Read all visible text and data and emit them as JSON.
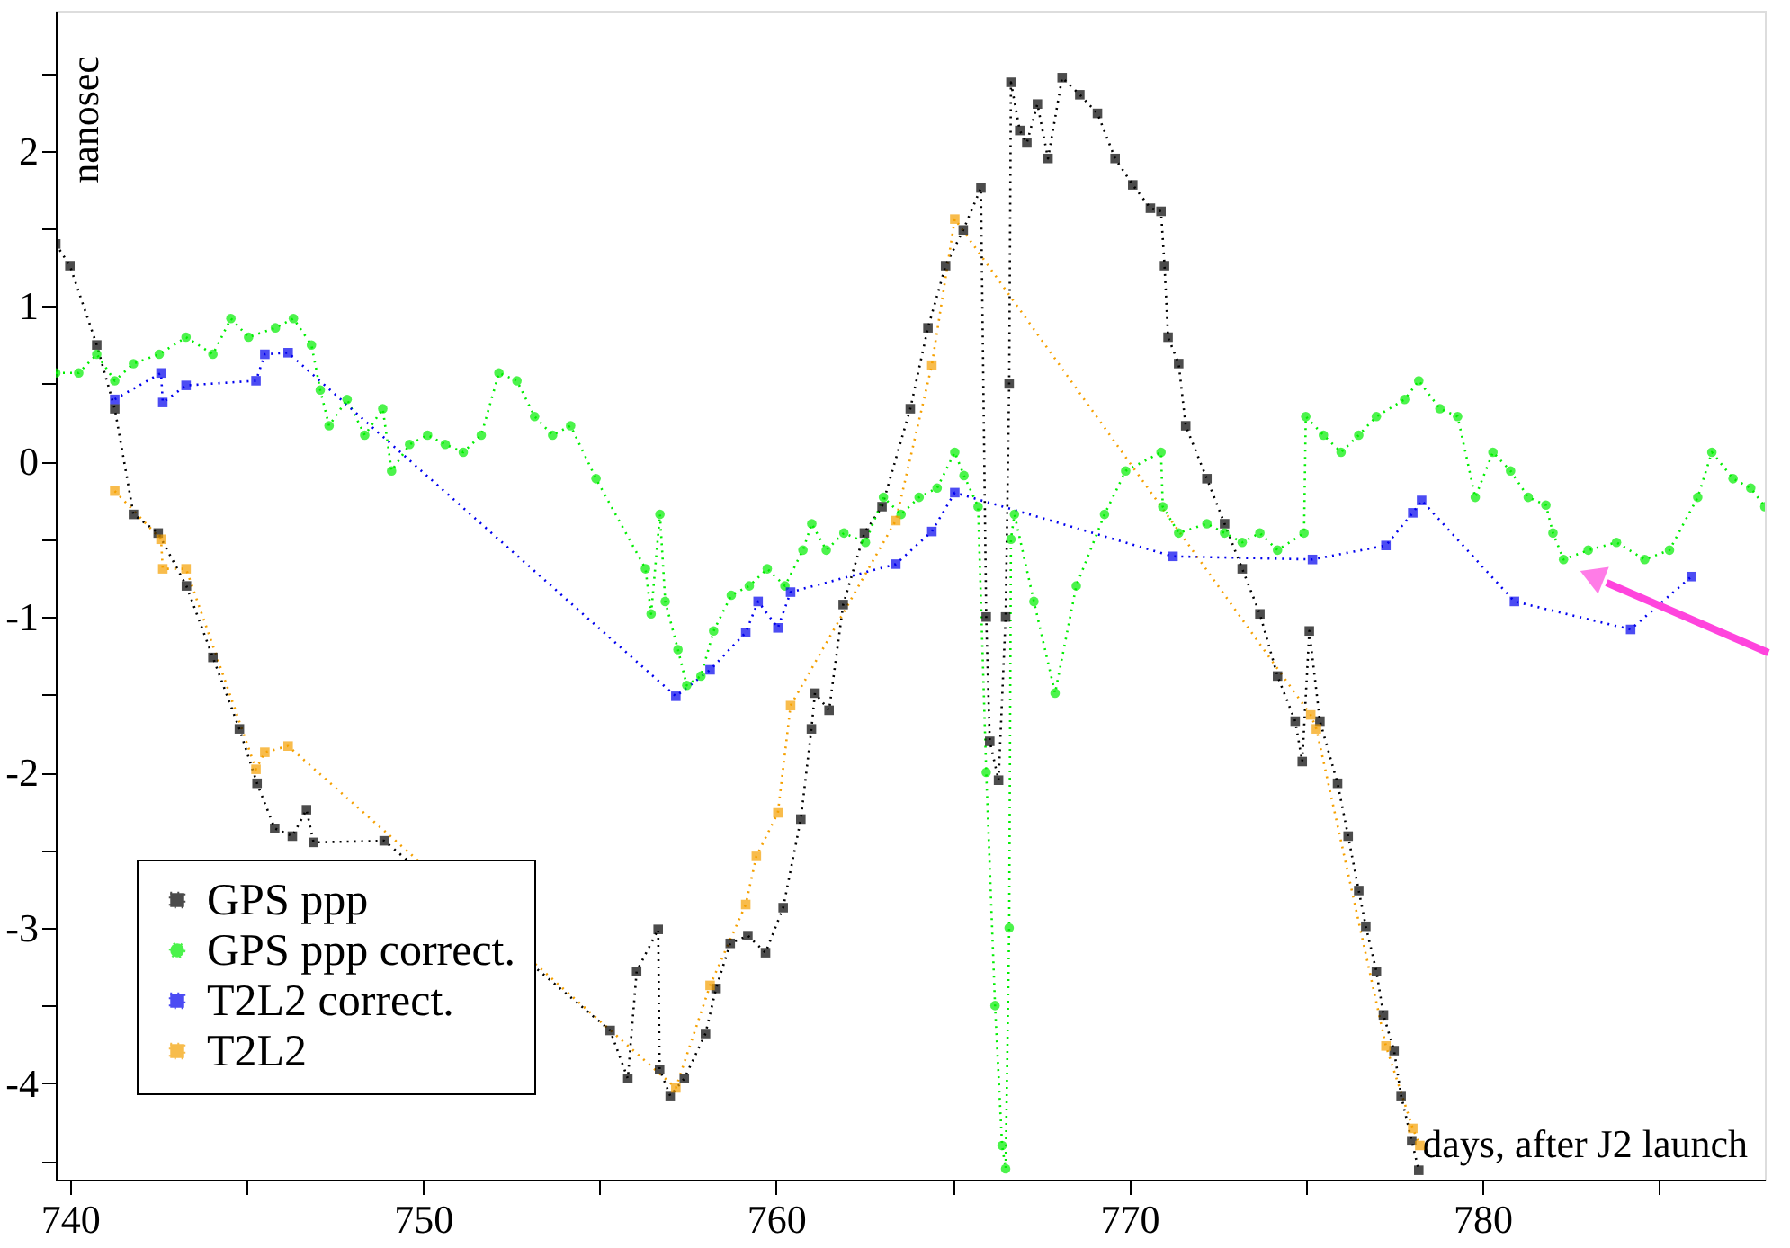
{
  "chart_data": {
    "type": "line",
    "xlabel": "days, after J2 launch",
    "ylabel": "nanosec",
    "xlim": [
      739.6,
      788.0
    ],
    "ylim": [
      -4.62,
      2.9
    ],
    "xticks": [
      740,
      {
        "value": 745,
        "label": null
      },
      750,
      {
        "value": 755,
        "label": null
      },
      760,
      {
        "value": 765,
        "label": null
      },
      770,
      {
        "value": 775,
        "label": null
      },
      780,
      {
        "value": 785,
        "label": null
      }
    ],
    "yticks": [
      -4,
      {
        "value": -4.5,
        "label": null
      },
      {
        "value": -3.5,
        "label": null
      },
      -3,
      {
        "value": -2.5,
        "label": null
      },
      -2,
      {
        "value": -1.5,
        "label": null
      },
      -1,
      {
        "value": -0.5,
        "label": null
      },
      0,
      {
        "value": 0.5,
        "label": null
      },
      1,
      {
        "value": 1.5,
        "label": null
      },
      2,
      {
        "value": 2.5,
        "label": null
      }
    ],
    "grid": false,
    "legend": "bottom left",
    "line_style": "dotted",
    "series": [
      {
        "name": "GPS ppp",
        "color": "#000000",
        "marker": "square",
        "x": [
          739.6,
          740.0,
          740.76,
          741.27,
          741.8,
          742.5,
          743.3,
          744.05,
          744.8,
          745.3,
          745.8,
          746.3,
          746.7,
          746.9,
          748.9,
          755.3,
          755.8,
          756.05,
          756.66,
          756.7,
          757.0,
          757.4,
          758.0,
          758.3,
          758.7,
          759.2,
          759.7,
          760.2,
          760.7,
          761.0,
          761.1,
          761.5,
          761.9,
          762.5,
          763.0,
          763.8,
          764.3,
          764.8,
          765.3,
          765.8,
          765.95,
          766.05,
          766.3,
          766.5,
          766.6,
          766.65,
          766.9,
          767.1,
          767.4,
          767.7,
          768.1,
          768.6,
          769.1,
          769.6,
          770.1,
          770.6,
          770.9,
          771.0,
          771.1,
          771.4,
          771.6,
          772.2,
          772.7,
          773.2,
          773.7,
          774.2,
          774.7,
          774.9,
          775.1,
          775.4,
          775.9,
          776.2,
          776.5,
          776.7,
          777.0,
          777.2,
          777.5,
          777.7,
          778.0,
          778.2
        ],
        "values": [
          1.4,
          1.26,
          0.75,
          0.34,
          -0.34,
          -0.46,
          -0.8,
          -1.26,
          -1.72,
          -2.07,
          -2.36,
          -2.41,
          -2.24,
          -2.45,
          -2.44,
          -3.66,
          -3.97,
          -3.28,
          -3.01,
          -3.91,
          -4.08,
          -3.97,
          -3.68,
          -3.39,
          -3.1,
          -3.05,
          -3.16,
          -2.87,
          -2.3,
          -1.72,
          -1.49,
          -1.6,
          -0.92,
          -0.46,
          -0.29,
          0.34,
          0.86,
          1.26,
          1.49,
          1.76,
          -1.0,
          -1.8,
          -2.05,
          -1.0,
          0.5,
          2.44,
          2.13,
          2.05,
          2.3,
          1.95,
          2.47,
          2.36,
          2.24,
          1.95,
          1.78,
          1.63,
          1.61,
          1.26,
          0.8,
          0.63,
          0.23,
          -0.11,
          -0.4,
          -0.69,
          -0.98,
          -1.38,
          -1.67,
          -1.93,
          -1.09,
          -1.67,
          -2.07,
          -2.41,
          -2.76,
          -2.99,
          -3.28,
          -3.56,
          -3.79,
          -4.08,
          -4.37,
          -4.56
        ]
      },
      {
        "name": "GPS ppp correct.",
        "color": "#00ee00",
        "marker": "circle",
        "x": [
          739.6,
          740.25,
          740.76,
          741.27,
          741.8,
          742.53,
          743.29,
          744.05,
          744.56,
          745.06,
          745.82,
          746.33,
          746.84,
          747.09,
          747.34,
          747.85,
          748.35,
          748.86,
          749.11,
          749.62,
          750.13,
          750.63,
          751.14,
          751.65,
          752.15,
          752.66,
          753.16,
          753.67,
          754.18,
          754.9,
          756.3,
          756.46,
          756.71,
          756.86,
          757.22,
          757.47,
          757.87,
          758.23,
          758.73,
          759.24,
          759.75,
          760.25,
          760.76,
          761.01,
          761.42,
          761.92,
          762.53,
          763.04,
          763.54,
          764.05,
          764.56,
          765.06,
          765.32,
          765.72,
          765.95,
          766.2,
          766.4,
          766.5,
          766.6,
          766.65,
          766.75,
          767.3,
          767.9,
          768.5,
          769.3,
          769.9,
          770.9,
          770.95,
          771.4,
          772.2,
          772.7,
          773.2,
          773.7,
          774.2,
          774.95,
          775.0,
          775.5,
          776.0,
          776.5,
          777.0,
          777.8,
          778.2,
          778.8,
          779.3,
          779.8,
          780.3,
          780.8,
          781.3,
          781.8,
          782.0,
          782.3,
          783.0,
          783.8,
          784.6,
          785.3,
          786.1,
          786.5,
          787.1,
          787.6,
          788.0
        ],
        "values": [
          0.57,
          0.57,
          0.69,
          0.52,
          0.63,
          0.69,
          0.8,
          0.69,
          0.92,
          0.8,
          0.86,
          0.92,
          0.75,
          0.46,
          0.23,
          0.4,
          0.17,
          0.34,
          -0.06,
          0.11,
          0.17,
          0.11,
          0.06,
          0.17,
          0.57,
          0.52,
          0.29,
          0.17,
          0.23,
          -0.11,
          -0.69,
          -0.98,
          -0.34,
          -0.9,
          -1.21,
          -1.44,
          -1.38,
          -1.09,
          -0.86,
          -0.8,
          -0.69,
          -0.8,
          -0.57,
          -0.4,
          -0.57,
          -0.46,
          -0.52,
          -0.23,
          -0.34,
          -0.23,
          -0.17,
          0.06,
          -0.09,
          -0.29,
          -2.0,
          -3.5,
          -4.4,
          -4.55,
          -3.0,
          -0.5,
          -0.34,
          -0.9,
          -1.49,
          -0.8,
          -0.34,
          -0.06,
          0.06,
          -0.29,
          -0.46,
          -0.4,
          -0.46,
          -0.52,
          -0.46,
          -0.57,
          -0.46,
          0.29,
          0.17,
          0.06,
          0.17,
          0.29,
          0.4,
          0.52,
          0.34,
          0.29,
          -0.23,
          0.06,
          -0.06,
          -0.23,
          -0.28,
          -0.46,
          -0.63,
          -0.57,
          -0.52,
          -0.63,
          -0.57,
          -0.23,
          0.06,
          -0.11,
          -0.17,
          -0.29
        ]
      },
      {
        "name": "T2L2 correct.",
        "color": "#0000ee",
        "marker": "square",
        "x": [
          741.27,
          742.58,
          742.63,
          743.29,
          745.27,
          745.52,
          746.18,
          757.16,
          758.13,
          759.14,
          759.49,
          760.05,
          760.41,
          763.39,
          764.41,
          765.06,
          771.24,
          775.19,
          777.27,
          778.03,
          778.28,
          780.91,
          784.2,
          785.92
        ],
        "values": [
          0.4,
          0.57,
          0.38,
          0.49,
          0.52,
          0.69,
          0.7,
          -1.51,
          -1.34,
          -1.1,
          -0.9,
          -1.07,
          -0.84,
          -0.66,
          -0.45,
          -0.2,
          -0.61,
          -0.63,
          -0.54,
          -0.33,
          -0.25,
          -0.9,
          -1.08,
          -0.74
        ]
      },
      {
        "name": "T2L2",
        "color": "#f5a000",
        "marker": "square",
        "x": [
          741.27,
          742.58,
          742.63,
          743.29,
          745.27,
          745.52,
          746.18,
          757.16,
          758.13,
          759.14,
          759.44,
          760.05,
          760.41,
          763.39,
          764.41,
          765.06,
          775.14,
          775.3,
          777.27,
          778.03,
          778.23
        ],
        "values": [
          -0.19,
          -0.5,
          -0.69,
          -0.69,
          -1.98,
          -1.87,
          -1.83,
          -4.03,
          -3.37,
          -2.85,
          -2.54,
          -2.26,
          -1.57,
          -0.38,
          0.62,
          1.56,
          -1.63,
          -1.72,
          -3.76,
          -4.29,
          -4.4
        ]
      }
    ]
  }
}
